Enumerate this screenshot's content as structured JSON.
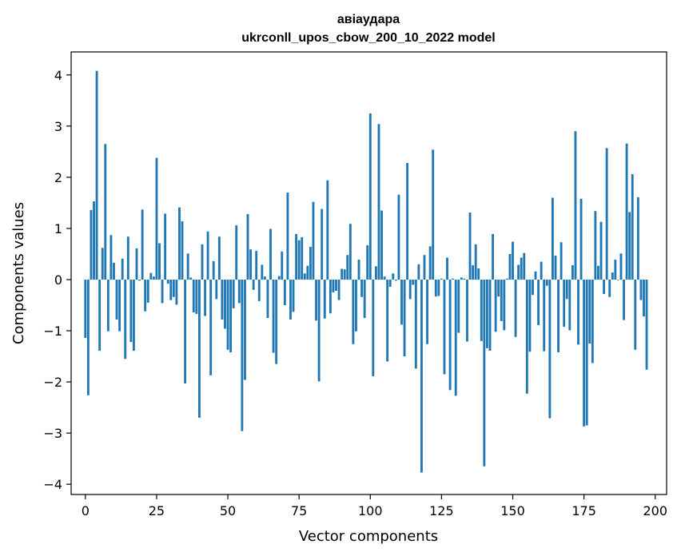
{
  "chart_data": {
    "type": "bar",
    "title_line1": "авіаудара",
    "title_line2": "ukrconll_upos_cbow_200_10_2022 model",
    "xlabel": "Vector components",
    "ylabel": "Components values",
    "xlim": [
      -5,
      204
    ],
    "ylim": [
      -4.2,
      4.45
    ],
    "xticks": [
      0,
      25,
      50,
      75,
      100,
      125,
      150,
      175,
      200
    ],
    "yticks": [
      -4,
      -3,
      -2,
      -1,
      0,
      1,
      2,
      3,
      4
    ],
    "bar_color": "#1f77b4",
    "grid": false,
    "values": [
      -1.14,
      -2.26,
      1.36,
      1.53,
      4.08,
      -1.39,
      0.62,
      2.65,
      -1.01,
      0.87,
      0.33,
      -0.78,
      -1.01,
      0.41,
      -1.55,
      0.84,
      -1.22,
      -1.39,
      0.61,
      -0.02,
      1.37,
      -0.62,
      -0.45,
      0.13,
      0.06,
      2.38,
      0.71,
      -0.46,
      1.29,
      -0.08,
      -0.4,
      -0.34,
      -0.49,
      1.41,
      1.14,
      -2.03,
      0.51,
      0.04,
      -0.64,
      -0.67,
      -2.7,
      0.69,
      -0.71,
      0.94,
      -1.87,
      0.36,
      -0.38,
      0.84,
      -0.78,
      -0.96,
      -1.37,
      -1.42,
      -0.56,
      1.06,
      -0.46,
      -2.96,
      -1.96,
      1.28,
      0.59,
      -0.2,
      0.56,
      -0.42,
      0.29,
      0.06,
      -0.75,
      0.99,
      -1.43,
      -1.65,
      0.07,
      0.55,
      -0.5,
      1.7,
      -0.78,
      -0.63,
      0.89,
      0.77,
      0.83,
      0.12,
      0.27,
      0.64,
      1.52,
      -0.8,
      -1.99,
      1.38,
      -0.76,
      1.94,
      -0.66,
      -0.25,
      -0.22,
      -0.4,
      0.21,
      0.2,
      0.48,
      1.09,
      -1.26,
      -1.01,
      0.39,
      -0.34,
      -0.75,
      0.67,
      3.25,
      -1.89,
      0.26,
      3.04,
      1.35,
      0.06,
      -1.6,
      -0.14,
      0.12,
      -0.02,
      1.66,
      -0.88,
      -1.5,
      2.28,
      -0.38,
      -0.1,
      -1.74,
      0.3,
      -3.77,
      0.48,
      -1.26,
      0.65,
      2.54,
      -0.33,
      -0.32,
      0.02,
      -1.85,
      0.43,
      -2.16,
      0.02,
      -2.27,
      -1.04,
      0.04,
      0.02,
      -1.21,
      1.31,
      0.28,
      0.69,
      0.22,
      -1.2,
      -3.65,
      -1.34,
      -1.39,
      0.89,
      -1.02,
      -0.33,
      -0.81,
      -0.99,
      0.02,
      0.5,
      0.74,
      -1.12,
      0.29,
      0.43,
      0.52,
      -2.23,
      -1.41,
      -0.3,
      0.16,
      -0.89,
      0.35,
      -1.4,
      -0.12,
      -2.71,
      1.6,
      0.47,
      -1.42,
      0.73,
      -0.92,
      -0.38,
      -0.99,
      0.28,
      2.9,
      -1.27,
      1.58,
      -2.87,
      -2.85,
      -1.25,
      -1.63,
      1.34,
      0.27,
      1.13,
      -0.28,
      2.57,
      -0.34,
      0.14,
      0.39,
      -0.01,
      0.51,
      -0.79,
      2.66,
      1.32,
      2.06,
      -1.37,
      1.61,
      -0.4,
      -0.72,
      -1.76
    ]
  }
}
